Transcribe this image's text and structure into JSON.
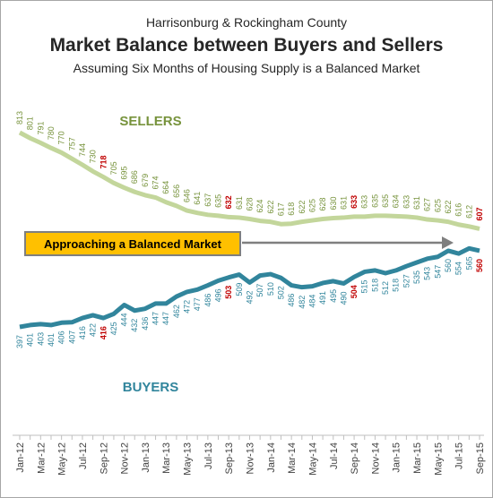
{
  "chart_data": {
    "type": "line",
    "supertitle": "Harrisonburg & Rockingham County",
    "title": "Market Balance between Buyers and Sellers",
    "subtitle": "Assuming Six Months of Housing Supply is a Balanced Market",
    "annotation": "Approaching a Balanced Market",
    "categories": [
      "Jan-12",
      null,
      "Mar-12",
      null,
      "May-12",
      null,
      "Jul-12",
      null,
      "Sep-12",
      null,
      "Nov-12",
      null,
      "Jan-13",
      null,
      "Mar-13",
      null,
      "May-13",
      null,
      "Jul-13",
      null,
      "Sep-13",
      null,
      "Nov-13",
      null,
      "Jan-14",
      null,
      "Mar-14",
      null,
      "May-14",
      null,
      "Jul-14",
      null,
      "Sep-14",
      null,
      "Nov-14",
      null,
      "Jan-15",
      null,
      "Mar-15",
      null,
      "May-15",
      null,
      "Jul-15",
      null,
      "Sep-15"
    ],
    "highlighted_points": [
      8,
      20,
      32,
      44
    ],
    "highlight_color": "#c00000",
    "series": [
      {
        "name": "SELLERS",
        "color": "#c3d69b",
        "label_color": "#77933c",
        "label_side": "above",
        "values": [
          813,
          801,
          791,
          780,
          770,
          757,
          744,
          730,
          718,
          705,
          695,
          686,
          679,
          674,
          664,
          656,
          646,
          641,
          637,
          635,
          632,
          631,
          628,
          624,
          622,
          617,
          618,
          622,
          625,
          628,
          630,
          631,
          633,
          633,
          635,
          635,
          634,
          633,
          631,
          627,
          625,
          622,
          616,
          612,
          607
        ]
      },
      {
        "name": "BUYERS",
        "color": "#31859c",
        "label_color": "#31859c",
        "label_side": "below",
        "values": [
          397,
          401,
          403,
          401,
          406,
          407,
          416,
          422,
          416,
          425,
          444,
          432,
          436,
          447,
          447,
          462,
          472,
          477,
          486,
          496,
          503,
          509,
          492,
          507,
          510,
          502,
          486,
          482,
          484,
          491,
          495,
          490,
          504,
          515,
          518,
          512,
          518,
          527,
          535,
          543,
          547,
          560,
          554,
          565,
          560
        ]
      }
    ]
  }
}
